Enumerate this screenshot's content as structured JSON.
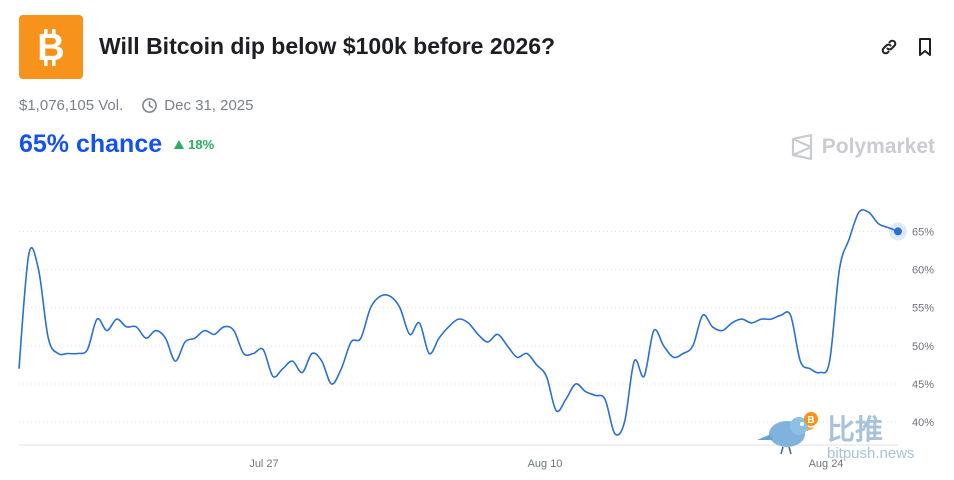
{
  "header": {
    "title": "Will Bitcoin dip below $100k before 2026?",
    "logo_icon": "bitcoin-logo",
    "logo_color": "#f7931a",
    "link_icon": "link-icon",
    "bookmark_icon": "bookmark-icon"
  },
  "meta": {
    "volume": "$1,076,105 Vol.",
    "date_icon": "clock-icon",
    "end_date": "Dec 31, 2025"
  },
  "odds": {
    "chance": "65% chance",
    "change": "18%",
    "change_direction": "up",
    "chance_color": "#1452f0",
    "change_color": "#27ae60"
  },
  "brand": {
    "name": "Polymarket",
    "icon": "polymarket-logo"
  },
  "watermark": {
    "cn": "比推",
    "en": "bitpush.news",
    "icon": "bird-mascot-icon"
  },
  "chart_data": {
    "type": "line",
    "x_tick_labels": [
      "Jul 27",
      "Aug 10",
      "Aug 24"
    ],
    "y_tick_labels": [
      "40%",
      "45%",
      "50%",
      "55%",
      "60%",
      "65%"
    ],
    "ylim": [
      37,
      72
    ],
    "grid": true,
    "line_color": "#2a6fd4",
    "series": [
      {
        "values": [
          47,
          62,
          60,
          51,
          49,
          49,
          49,
          49.5,
          53.5,
          52,
          53.5,
          52.5,
          52.5,
          51,
          52,
          51,
          48,
          50.5,
          51,
          52,
          51.5,
          52.5,
          52,
          49,
          49,
          49.5,
          46,
          47,
          48,
          46.5,
          49,
          48,
          45,
          47,
          50.5,
          51,
          55,
          56.5,
          56.5,
          55,
          51.5,
          53,
          49,
          51,
          52.5,
          53.5,
          53,
          51.5,
          50.5,
          51.5,
          50,
          48.5,
          49,
          47.5,
          46,
          41.5,
          43,
          45,
          44,
          43.5,
          43,
          38.5,
          40,
          48,
          46,
          52,
          50,
          48.5,
          49,
          50,
          54,
          52.5,
          52,
          53,
          53.5,
          53,
          53.5,
          53.5,
          54,
          54,
          48,
          47,
          46.5,
          48,
          60,
          64,
          67.5,
          67.5,
          66,
          65.5,
          65
        ]
      }
    ]
  }
}
